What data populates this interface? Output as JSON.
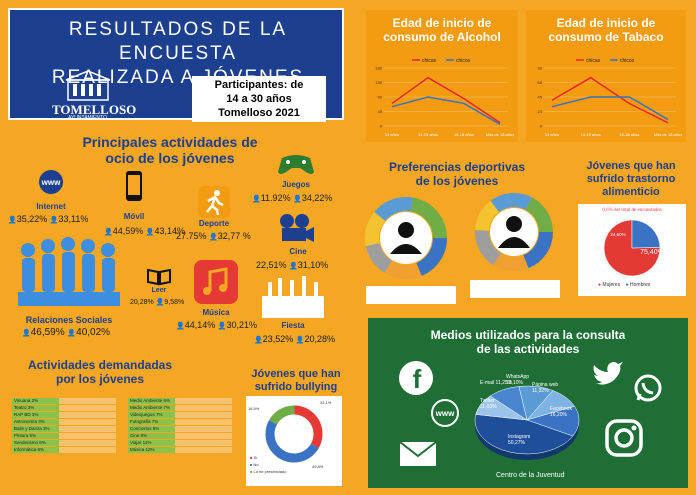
{
  "header": {
    "title_line1": "RESULTADOS DE LA ENCUESTA",
    "title_line2": "REALIZADA A JÓVENES",
    "logo_name": "TOMELLOSO",
    "logo_sub": "AYUNTAMIENTO",
    "participants_line1": "Participantes: de",
    "participants_line2": "14 a 30 años",
    "participants_line3": "Tomelloso 2021"
  },
  "activities": {
    "title_line1": "Principales actividades de",
    "title_line2": "ocio de los jóvenes",
    "items": [
      {
        "name": "Internet",
        "female": "35,22%",
        "male": "33,11%"
      },
      {
        "name": "Móvil",
        "female": "44,59%",
        "male": "43,14%"
      },
      {
        "name": "Juegos",
        "female": "11.92%",
        "male": "34,22%"
      },
      {
        "name": "Deporte",
        "female": "27.75%",
        "male": "32,77 %"
      },
      {
        "name": "Cine",
        "female": "22,51%",
        "male": "31,10%"
      },
      {
        "name": "Relaciones Sociales",
        "female": "46,59%",
        "male": "40,02%"
      },
      {
        "name": "Leer",
        "female": "20,28%",
        "male": "9,58%"
      },
      {
        "name": "Música",
        "female": "44,14%",
        "male": "30,21%"
      },
      {
        "name": "Fiesta",
        "female": "23,52%",
        "male": "20,28%"
      }
    ]
  },
  "alcohol": {
    "title_line1": "Edad de inicio de",
    "title_line2": "consumo de Alcohol"
  },
  "tabaco": {
    "title_line1": "Edad de inicio de",
    "title_line2": "consumo de Tabaco"
  },
  "chart_data": [
    {
      "type": "line",
      "categories": [
        "13 años",
        "14-15 años",
        "16-18 años",
        "Más de 18 años"
      ],
      "series": [
        {
          "name": "chicas",
          "values": [
            70,
            150,
            85,
            10
          ]
        },
        {
          "name": "chicos",
          "values": [
            60,
            90,
            70,
            5
          ]
        }
      ],
      "ylim": [
        0,
        180
      ],
      "legend": "top"
    },
    {
      "type": "line",
      "categories": [
        "13 años",
        "14-15 años",
        "16-18 años",
        "Más de 18 años"
      ],
      "series": [
        {
          "name": "chicas",
          "values": [
            40,
            75,
            35,
            5
          ]
        },
        {
          "name": "chicos",
          "values": [
            30,
            45,
            45,
            10
          ]
        }
      ],
      "ylim": [
        0,
        90
      ],
      "legend": "top"
    },
    {
      "type": "pie",
      "labels": [
        "",
        ""
      ],
      "values": [
        75.4,
        24.6
      ],
      "series_names": [
        "Mujeres",
        "Hombres"
      ]
    },
    {
      "type": "pie",
      "labels": [
        "WhatsApp",
        "Página web",
        "Facebook",
        "Instagram",
        "Twitter",
        "E-mail"
      ],
      "values": [
        12.1,
        11.32,
        16.2,
        50.27,
        11.03,
        11.25
      ]
    },
    {
      "type": "pie",
      "values": [
        33.1,
        49.8,
        16.9
      ],
      "labels": [
        "33,1%",
        "49,8%",
        "16,9%"
      ]
    }
  ],
  "sports": {
    "title_line1": "Preferencias deportivas",
    "title_line2": "de los jóvenes"
  },
  "eating": {
    "title_line1": "Jóvenes que han",
    "title_line2": "sufrido trastorno",
    "title_line3": "alimenticio",
    "note": "6,6% del total de encuestados",
    "value_big": "75,40%",
    "value_small": "24,60%",
    "legend_women": "Mujeres",
    "legend_men": "Hombres"
  },
  "media": {
    "title_line1": "Medios utilizados para la consulta",
    "title_line2": "de las actividades",
    "footer": "Centro de la Juventud",
    "labels": {
      "whatsapp": "WhatsApp 12,10%",
      "web": "Página web 11,32%",
      "facebook": "Facebook 16,20%",
      "instagram": "Instagram 50,27%",
      "twitter": "Twitter 11,03%",
      "email": "E-mail 11,25%"
    }
  },
  "demanded": {
    "title_line1": "Actividades demandadas",
    "title_line2": "por los jóvenes",
    "left_bars": [
      {
        "label": "Vinuana 2%",
        "fill": 0.45
      },
      {
        "label": "Teatro 3%",
        "fill": 0.45
      },
      {
        "label": "RAP BD 3%",
        "fill": 0.45
      },
      {
        "label": "Astronomía 3%",
        "fill": 0.45
      },
      {
        "label": "Baile y Danza 3%",
        "fill": 0.45
      },
      {
        "label": "Pintura 5%",
        "fill": 0.45
      },
      {
        "label": "Senderismo 6%",
        "fill": 0.45
      },
      {
        "label": "Informática 6%",
        "fill": 0.45
      }
    ],
    "right_bars": [
      {
        "label": "Medio Ambiente 6%",
        "fill": 0.45
      },
      {
        "label": "Medio Ambiente 7%",
        "fill": 0.45
      },
      {
        "label": "Videojuegos 7%",
        "fill": 0.45
      },
      {
        "label": "Fotografía 7%",
        "fill": 0.45
      },
      {
        "label": "Conciertos 8%",
        "fill": 0.45
      },
      {
        "label": "Cine 8%",
        "fill": 0.45
      },
      {
        "label": "Viajar 11%",
        "fill": 0.45
      },
      {
        "label": "Música 12%",
        "fill": 0.45
      }
    ]
  },
  "bullying": {
    "title_line1": "Jóvenes que han",
    "title_line2": "sufrido bullying",
    "label_top": "33,1%",
    "label_left": "16,9%",
    "label_bottom": "49,8%",
    "legend": [
      "Sí",
      "No",
      "Lo he presenciado"
    ]
  },
  "colors": {
    "background": "#f5a623",
    "navy": "#1d3f8f",
    "green": "#1e6e36",
    "line_red": "#e8262a",
    "line_blue": "#3a72c4"
  }
}
